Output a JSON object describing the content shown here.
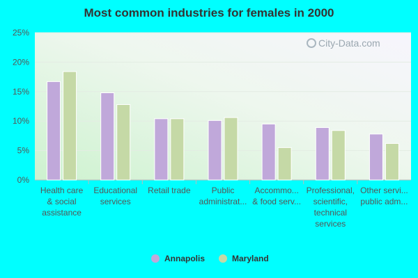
{
  "chart_data": {
    "type": "bar",
    "title": "Most common industries for females in 2000",
    "xlabel": "",
    "ylabel": "",
    "ylim": [
      0,
      25
    ],
    "yticks": [
      0,
      5,
      10,
      15,
      20,
      25
    ],
    "ytick_labels": [
      "0%",
      "5%",
      "10%",
      "15%",
      "20%",
      "25%"
    ],
    "categories": [
      [
        "Health care",
        "& social",
        "assistance"
      ],
      [
        "Educational",
        "services"
      ],
      [
        "Retail trade"
      ],
      [
        "Public",
        "administrat..."
      ],
      [
        "Accommo...",
        "& food serv..."
      ],
      [
        "Professional,",
        "scientific,",
        "technical",
        "services"
      ],
      [
        "Other servi...",
        "public adm..."
      ]
    ],
    "series": [
      {
        "name": "Annapolis",
        "color": "#C0A8DA",
        "values": [
          16.7,
          14.8,
          10.4,
          10.1,
          9.5,
          8.9,
          7.8
        ]
      },
      {
        "name": "Maryland",
        "color": "#C5D9A6",
        "values": [
          18.4,
          12.8,
          10.4,
          10.6,
          5.5,
          8.4,
          6.2
        ]
      }
    ],
    "grid": true,
    "legend": "bottom-center"
  },
  "watermark": "City-Data.com",
  "colors": {
    "page_background": "#00FFFF"
  }
}
